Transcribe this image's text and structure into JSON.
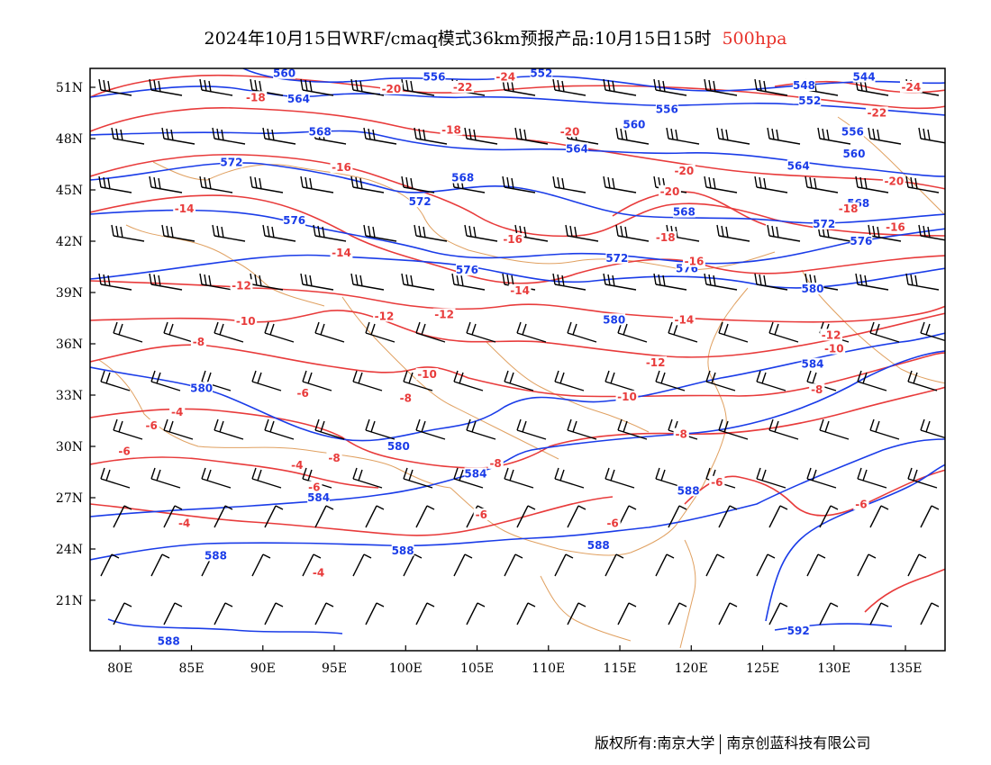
{
  "title": {
    "text": "2024年10月15日WRF/cmaq模式36km预报产品:10月15日15时",
    "level": "500hpa"
  },
  "credit": {
    "left": "版权所有:南京大学",
    "right": "南京创蓝科技有限公司"
  },
  "axes": {
    "lat_labels": [
      "51N",
      "48N",
      "45N",
      "42N",
      "39N",
      "36N",
      "33N",
      "30N",
      "27N",
      "24N",
      "21N"
    ],
    "lon_labels": [
      "80E",
      "85E",
      "90E",
      "95E",
      "100E",
      "105E",
      "110E",
      "115E",
      "120E",
      "125E",
      "130E",
      "135E"
    ]
  },
  "colors": {
    "height_contour": "#1a3ce8",
    "temperature_contour": "#e83b3b",
    "boundary": "#e0a060",
    "wind_barb": "#000000"
  },
  "height_labels": [
    {
      "text": "560",
      "lon": 91.5,
      "lat": 51.7
    },
    {
      "text": "556",
      "lon": 102,
      "lat": 51.5
    },
    {
      "text": "552",
      "lon": 109.5,
      "lat": 51.7
    },
    {
      "text": "564",
      "lon": 92.5,
      "lat": 50.2
    },
    {
      "text": "568",
      "lon": 94,
      "lat": 48.3
    },
    {
      "text": "572",
      "lon": 87.8,
      "lat": 46.5
    },
    {
      "text": "576",
      "lon": 92.2,
      "lat": 43.1
    },
    {
      "text": "572",
      "lon": 101,
      "lat": 44.2
    },
    {
      "text": "568",
      "lon": 104,
      "lat": 45.6
    },
    {
      "text": "576",
      "lon": 104.3,
      "lat": 40.2
    },
    {
      "text": "572",
      "lon": 114.8,
      "lat": 40.9
    },
    {
      "text": "576",
      "lon": 119.7,
      "lat": 40.3
    },
    {
      "text": "580",
      "lon": 114.6,
      "lat": 37.3
    },
    {
      "text": "556",
      "lon": 118.3,
      "lat": 49.6
    },
    {
      "text": "560",
      "lon": 116,
      "lat": 48.7
    },
    {
      "text": "564",
      "lon": 112,
      "lat": 47.3
    },
    {
      "text": "564",
      "lon": 127.5,
      "lat": 46.3
    },
    {
      "text": "568",
      "lon": 119.5,
      "lat": 43.6
    },
    {
      "text": "548",
      "lon": 127.9,
      "lat": 51.0
    },
    {
      "text": "552",
      "lon": 128.3,
      "lat": 50.1
    },
    {
      "text": "544",
      "lon": 132.1,
      "lat": 51.5
    },
    {
      "text": "556",
      "lon": 131.3,
      "lat": 48.3
    },
    {
      "text": "560",
      "lon": 131.4,
      "lat": 47.0
    },
    {
      "text": "568",
      "lon": 131.7,
      "lat": 44.1
    },
    {
      "text": "572",
      "lon": 129.3,
      "lat": 42.9
    },
    {
      "text": "576",
      "lon": 131.9,
      "lat": 41.9
    },
    {
      "text": "580",
      "lon": 128.5,
      "lat": 39.1
    },
    {
      "text": "584",
      "lon": 128.5,
      "lat": 34.7
    },
    {
      "text": "580",
      "lon": 85.7,
      "lat": 33.3
    },
    {
      "text": "580",
      "lon": 99.5,
      "lat": 29.9
    },
    {
      "text": "584",
      "lon": 104.9,
      "lat": 28.3
    },
    {
      "text": "584",
      "lon": 93.9,
      "lat": 26.9
    },
    {
      "text": "588",
      "lon": 86.7,
      "lat": 23.5
    },
    {
      "text": "588",
      "lon": 99.8,
      "lat": 23.8
    },
    {
      "text": "588",
      "lon": 113.5,
      "lat": 24.1
    },
    {
      "text": "588",
      "lon": 119.8,
      "lat": 27.3
    },
    {
      "text": "588",
      "lon": 83.4,
      "lat": 18.5
    },
    {
      "text": "592",
      "lon": 127.5,
      "lat": 19.1
    }
  ],
  "temperature_labels": [
    {
      "text": "-24",
      "lon": 107,
      "lat": 51.5
    },
    {
      "text": "-20",
      "lon": 99,
      "lat": 50.8
    },
    {
      "text": "-22",
      "lon": 104,
      "lat": 50.9
    },
    {
      "text": "-18",
      "lon": 89.5,
      "lat": 50.3
    },
    {
      "text": "-18",
      "lon": 103.2,
      "lat": 48.4
    },
    {
      "text": "-20",
      "lon": 111.5,
      "lat": 48.3
    },
    {
      "text": "-16",
      "lon": 95.5,
      "lat": 46.2
    },
    {
      "text": "-14",
      "lon": 84.5,
      "lat": 43.8
    },
    {
      "text": "-20",
      "lon": 119.5,
      "lat": 46.0
    },
    {
      "text": "-20",
      "lon": 118.5,
      "lat": 44.8
    },
    {
      "text": "-18",
      "lon": 118.2,
      "lat": 42.1
    },
    {
      "text": "-16",
      "lon": 107.5,
      "lat": 42.0
    },
    {
      "text": "-16",
      "lon": 120.2,
      "lat": 40.7
    },
    {
      "text": "-14",
      "lon": 95.5,
      "lat": 41.2
    },
    {
      "text": "-14",
      "lon": 108,
      "lat": 39.0
    },
    {
      "text": "-12",
      "lon": 88.5,
      "lat": 39.3
    },
    {
      "text": "-12",
      "lon": 98.5,
      "lat": 37.5
    },
    {
      "text": "-12",
      "lon": 102.7,
      "lat": 37.6
    },
    {
      "text": "-10",
      "lon": 88.8,
      "lat": 37.2
    },
    {
      "text": "-8",
      "lon": 85.5,
      "lat": 36.0
    },
    {
      "text": "-10",
      "lon": 101.5,
      "lat": 34.1
    },
    {
      "text": "-8",
      "lon": 100,
      "lat": 32.7
    },
    {
      "text": "-6",
      "lon": 92.8,
      "lat": 33.0
    },
    {
      "text": "-4",
      "lon": 84,
      "lat": 31.9
    },
    {
      "text": "-6",
      "lon": 82.2,
      "lat": 31.1
    },
    {
      "text": "-6",
      "lon": 80.3,
      "lat": 29.6
    },
    {
      "text": "-8",
      "lon": 95,
      "lat": 29.2
    },
    {
      "text": "-4",
      "lon": 92.4,
      "lat": 28.8
    },
    {
      "text": "-6",
      "lon": 93.6,
      "lat": 27.5
    },
    {
      "text": "-8",
      "lon": 106.3,
      "lat": 28.9
    },
    {
      "text": "-6",
      "lon": 105.3,
      "lat": 25.9
    },
    {
      "text": "-4",
      "lon": 84.5,
      "lat": 25.4
    },
    {
      "text": "-4",
      "lon": 93.9,
      "lat": 22.5
    },
    {
      "text": "-6",
      "lon": 114.5,
      "lat": 25.4
    },
    {
      "text": "-10",
      "lon": 115.5,
      "lat": 32.8
    },
    {
      "text": "-12",
      "lon": 117.5,
      "lat": 34.8
    },
    {
      "text": "-14",
      "lon": 119.5,
      "lat": 37.3
    },
    {
      "text": "-12",
      "lon": 129.8,
      "lat": 36.4
    },
    {
      "text": "-10",
      "lon": 130,
      "lat": 35.6
    },
    {
      "text": "-8",
      "lon": 128.8,
      "lat": 33.2
    },
    {
      "text": "-8",
      "lon": 119.3,
      "lat": 30.6
    },
    {
      "text": "-6",
      "lon": 121.8,
      "lat": 27.8
    },
    {
      "text": "-6",
      "lon": 131.9,
      "lat": 26.5
    },
    {
      "text": "-24",
      "lon": 135.4,
      "lat": 50.9
    },
    {
      "text": "-22",
      "lon": 133,
      "lat": 49.4
    },
    {
      "text": "-20",
      "lon": 134.2,
      "lat": 45.4
    },
    {
      "text": "-16",
      "lon": 134.3,
      "lat": 42.7
    },
    {
      "text": "-18",
      "lon": 131,
      "lat": 43.8
    }
  ]
}
